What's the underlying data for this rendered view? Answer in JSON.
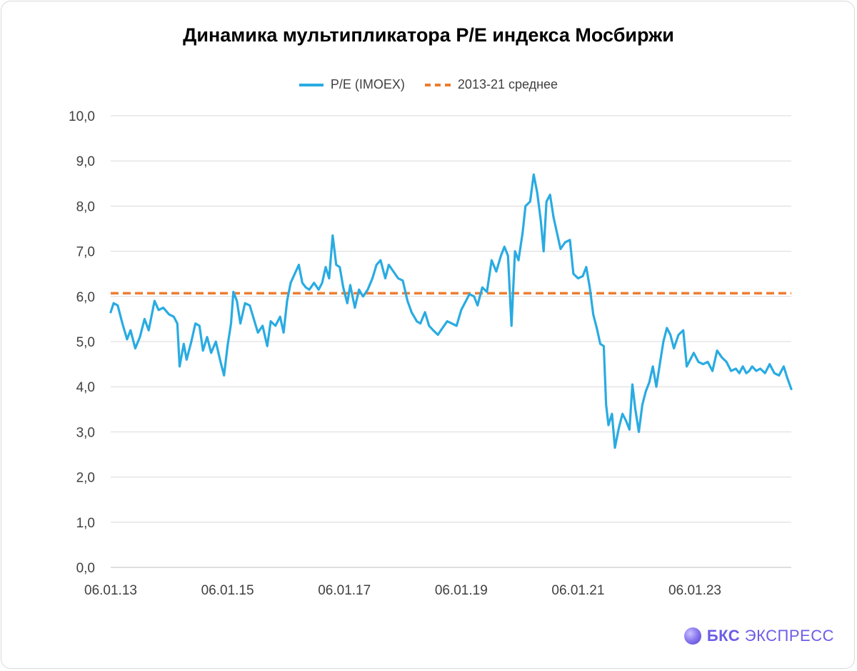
{
  "chart_data": {
    "type": "line",
    "title": "Динамика мультипликатора P/E индекса Мосбиржи",
    "xlabel": "",
    "ylabel": "",
    "ylim": [
      0,
      10
    ],
    "y_ticks": [
      "0,0",
      "1,0",
      "2,0",
      "3,0",
      "4,0",
      "5,0",
      "6,0",
      "7,0",
      "8,0",
      "9,0",
      "10,0"
    ],
    "x_tick_labels": [
      "06.01.13",
      "06.01.15",
      "06.01.17",
      "06.01.19",
      "06.01.21",
      "06.01.23"
    ],
    "x_tick_years": [
      2013.0,
      2015.0,
      2017.0,
      2019.0,
      2021.0,
      2023.0
    ],
    "xlim": [
      2013.0,
      2024.65
    ],
    "legend_position": "top-center",
    "series": [
      {
        "name": "P/E (IMOEX)",
        "color": "#29abe2",
        "points": [
          [
            2013.0,
            5.65
          ],
          [
            2013.05,
            5.85
          ],
          [
            2013.12,
            5.8
          ],
          [
            2013.2,
            5.4
          ],
          [
            2013.28,
            5.05
          ],
          [
            2013.34,
            5.25
          ],
          [
            2013.42,
            4.85
          ],
          [
            2013.5,
            5.1
          ],
          [
            2013.58,
            5.5
          ],
          [
            2013.65,
            5.25
          ],
          [
            2013.75,
            5.9
          ],
          [
            2013.82,
            5.7
          ],
          [
            2013.9,
            5.75
          ],
          [
            2014.0,
            5.6
          ],
          [
            2014.08,
            5.55
          ],
          [
            2014.14,
            5.4
          ],
          [
            2014.18,
            4.45
          ],
          [
            2014.25,
            4.95
          ],
          [
            2014.3,
            4.6
          ],
          [
            2014.38,
            5.0
          ],
          [
            2014.45,
            5.4
          ],
          [
            2014.52,
            5.35
          ],
          [
            2014.58,
            4.8
          ],
          [
            2014.65,
            5.1
          ],
          [
            2014.72,
            4.75
          ],
          [
            2014.8,
            5.0
          ],
          [
            2014.88,
            4.55
          ],
          [
            2014.94,
            4.25
          ],
          [
            2015.0,
            4.9
          ],
          [
            2015.06,
            5.4
          ],
          [
            2015.1,
            6.1
          ],
          [
            2015.16,
            5.9
          ],
          [
            2015.22,
            5.4
          ],
          [
            2015.3,
            5.85
          ],
          [
            2015.38,
            5.8
          ],
          [
            2015.45,
            5.5
          ],
          [
            2015.52,
            5.2
          ],
          [
            2015.6,
            5.35
          ],
          [
            2015.68,
            4.9
          ],
          [
            2015.74,
            5.45
          ],
          [
            2015.82,
            5.35
          ],
          [
            2015.9,
            5.55
          ],
          [
            2015.96,
            5.2
          ],
          [
            2016.02,
            5.9
          ],
          [
            2016.08,
            6.3
          ],
          [
            2016.15,
            6.5
          ],
          [
            2016.22,
            6.7
          ],
          [
            2016.28,
            6.3
          ],
          [
            2016.34,
            6.2
          ],
          [
            2016.4,
            6.15
          ],
          [
            2016.48,
            6.3
          ],
          [
            2016.56,
            6.15
          ],
          [
            2016.62,
            6.3
          ],
          [
            2016.68,
            6.65
          ],
          [
            2016.74,
            6.4
          ],
          [
            2016.8,
            7.35
          ],
          [
            2016.86,
            6.7
          ],
          [
            2016.92,
            6.65
          ],
          [
            2016.98,
            6.2
          ],
          [
            2017.05,
            5.85
          ],
          [
            2017.1,
            6.25
          ],
          [
            2017.18,
            5.75
          ],
          [
            2017.25,
            6.15
          ],
          [
            2017.32,
            6.0
          ],
          [
            2017.4,
            6.15
          ],
          [
            2017.48,
            6.4
          ],
          [
            2017.55,
            6.7
          ],
          [
            2017.62,
            6.8
          ],
          [
            2017.7,
            6.4
          ],
          [
            2017.76,
            6.7
          ],
          [
            2017.84,
            6.55
          ],
          [
            2017.92,
            6.4
          ],
          [
            2018.0,
            6.35
          ],
          [
            2018.08,
            5.9
          ],
          [
            2018.15,
            5.65
          ],
          [
            2018.24,
            5.45
          ],
          [
            2018.3,
            5.4
          ],
          [
            2018.38,
            5.65
          ],
          [
            2018.45,
            5.35
          ],
          [
            2018.52,
            5.25
          ],
          [
            2018.6,
            5.15
          ],
          [
            2018.68,
            5.3
          ],
          [
            2018.76,
            5.45
          ],
          [
            2018.84,
            5.4
          ],
          [
            2018.92,
            5.35
          ],
          [
            2019.0,
            5.7
          ],
          [
            2019.08,
            5.9
          ],
          [
            2019.14,
            6.05
          ],
          [
            2019.22,
            6.0
          ],
          [
            2019.28,
            5.8
          ],
          [
            2019.36,
            6.2
          ],
          [
            2019.44,
            6.1
          ],
          [
            2019.52,
            6.8
          ],
          [
            2019.6,
            6.55
          ],
          [
            2019.68,
            6.9
          ],
          [
            2019.74,
            7.1
          ],
          [
            2019.8,
            6.9
          ],
          [
            2019.86,
            5.35
          ],
          [
            2019.92,
            7.0
          ],
          [
            2019.98,
            6.8
          ],
          [
            2020.05,
            7.4
          ],
          [
            2020.1,
            8.0
          ],
          [
            2020.18,
            8.1
          ],
          [
            2020.24,
            8.7
          ],
          [
            2020.3,
            8.3
          ],
          [
            2020.36,
            7.7
          ],
          [
            2020.41,
            7.0
          ],
          [
            2020.46,
            8.1
          ],
          [
            2020.52,
            8.25
          ],
          [
            2020.58,
            7.75
          ],
          [
            2020.64,
            7.4
          ],
          [
            2020.7,
            7.05
          ],
          [
            2020.78,
            7.2
          ],
          [
            2020.86,
            7.25
          ],
          [
            2020.92,
            6.5
          ],
          [
            2021.0,
            6.4
          ],
          [
            2021.08,
            6.45
          ],
          [
            2021.14,
            6.65
          ],
          [
            2021.2,
            6.2
          ],
          [
            2021.26,
            5.6
          ],
          [
            2021.32,
            5.3
          ],
          [
            2021.38,
            4.95
          ],
          [
            2021.44,
            4.9
          ],
          [
            2021.48,
            3.6
          ],
          [
            2021.52,
            3.15
          ],
          [
            2021.58,
            3.4
          ],
          [
            2021.63,
            2.65
          ],
          [
            2021.7,
            3.1
          ],
          [
            2021.76,
            3.4
          ],
          [
            2021.82,
            3.25
          ],
          [
            2021.88,
            3.05
          ],
          [
            2021.93,
            4.05
          ],
          [
            2021.98,
            3.5
          ],
          [
            2022.04,
            3.0
          ],
          [
            2022.1,
            3.6
          ],
          [
            2022.16,
            3.9
          ],
          [
            2022.22,
            4.1
          ],
          [
            2022.28,
            4.45
          ],
          [
            2022.34,
            4.0
          ],
          [
            2022.4,
            4.5
          ],
          [
            2022.46,
            5.0
          ],
          [
            2022.52,
            5.3
          ],
          [
            2022.58,
            5.15
          ],
          [
            2022.64,
            4.85
          ],
          [
            2022.72,
            5.15
          ],
          [
            2022.8,
            5.25
          ],
          [
            2022.86,
            4.45
          ],
          [
            2022.92,
            4.6
          ],
          [
            2022.98,
            4.75
          ],
          [
            2023.06,
            4.55
          ],
          [
            2023.14,
            4.5
          ],
          [
            2023.22,
            4.55
          ],
          [
            2023.3,
            4.35
          ],
          [
            2023.38,
            4.8
          ],
          [
            2023.46,
            4.65
          ],
          [
            2023.54,
            4.55
          ],
          [
            2023.62,
            4.35
          ],
          [
            2023.7,
            4.4
          ],
          [
            2023.76,
            4.3
          ],
          [
            2023.82,
            4.45
          ],
          [
            2023.88,
            4.3
          ],
          [
            2023.93,
            4.35
          ],
          [
            2023.98,
            4.45
          ],
          [
            2024.05,
            4.35
          ],
          [
            2024.12,
            4.4
          ],
          [
            2024.2,
            4.3
          ],
          [
            2024.28,
            4.5
          ],
          [
            2024.36,
            4.3
          ],
          [
            2024.44,
            4.25
          ],
          [
            2024.52,
            4.45
          ],
          [
            2024.58,
            4.2
          ],
          [
            2024.65,
            3.95
          ]
        ]
      },
      {
        "name": "2013-21 среднее",
        "color": "#ed7d31",
        "style": "dashed",
        "value": 6.07
      }
    ]
  },
  "branding": {
    "logo_bold": "БКС",
    "logo_text": "ЭКСПРЕСС"
  }
}
